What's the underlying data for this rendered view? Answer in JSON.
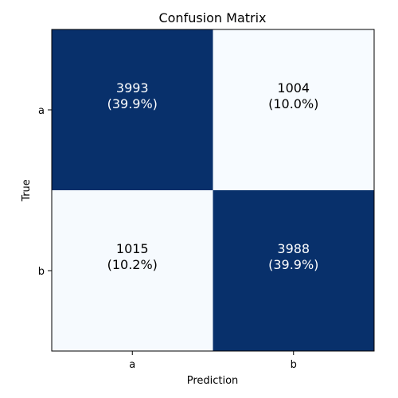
{
  "chart_data": {
    "type": "heatmap",
    "title": "Confusion Matrix",
    "xlabel": "Prediction",
    "ylabel": "True",
    "x_categories": [
      "a",
      "b"
    ],
    "y_categories": [
      "a",
      "b"
    ],
    "values": [
      [
        3993,
        1004
      ],
      [
        1015,
        3988
      ]
    ],
    "percent_labels": [
      [
        "(39.9%)",
        "(10.0%)"
      ],
      [
        "(10.2%)",
        "(39.9%)"
      ]
    ],
    "colormap": "Blues",
    "colors": {
      "high": "#08306b",
      "low": "#f7fbff",
      "text_on_dark": "#ffffff",
      "text_on_light": "#000000"
    },
    "grid": false
  }
}
